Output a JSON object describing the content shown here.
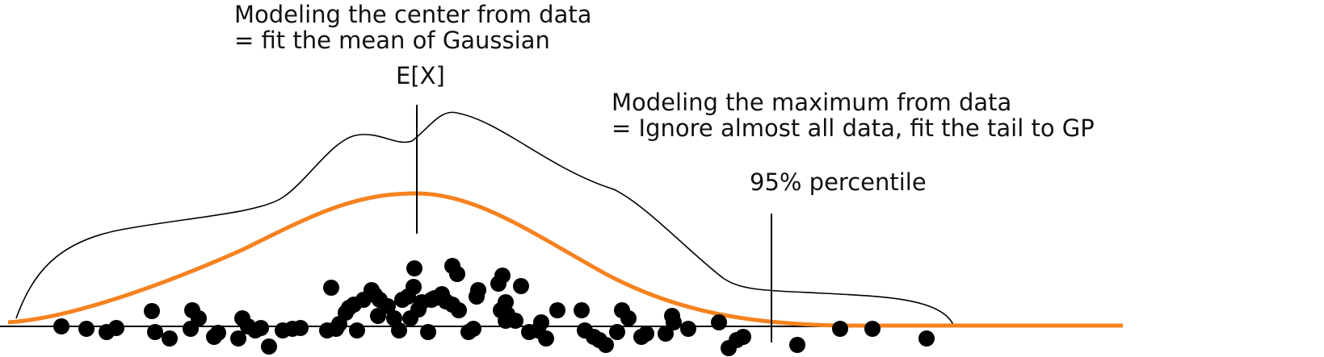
{
  "annotations": {
    "center_line1": "Modeling the center from data",
    "center_line2": " = fit the mean of Gaussian",
    "mean_label": "E[X]",
    "max_line1": "Modeling the maximum from data",
    "max_line2": "= Ignore almost all data, fit the tail to GP",
    "percentile_label": "95% percentile"
  },
  "colors": {
    "gaussian_curve": "#f58220",
    "density_curve": "#000000",
    "points": "#000000",
    "axis": "#000000"
  }
}
